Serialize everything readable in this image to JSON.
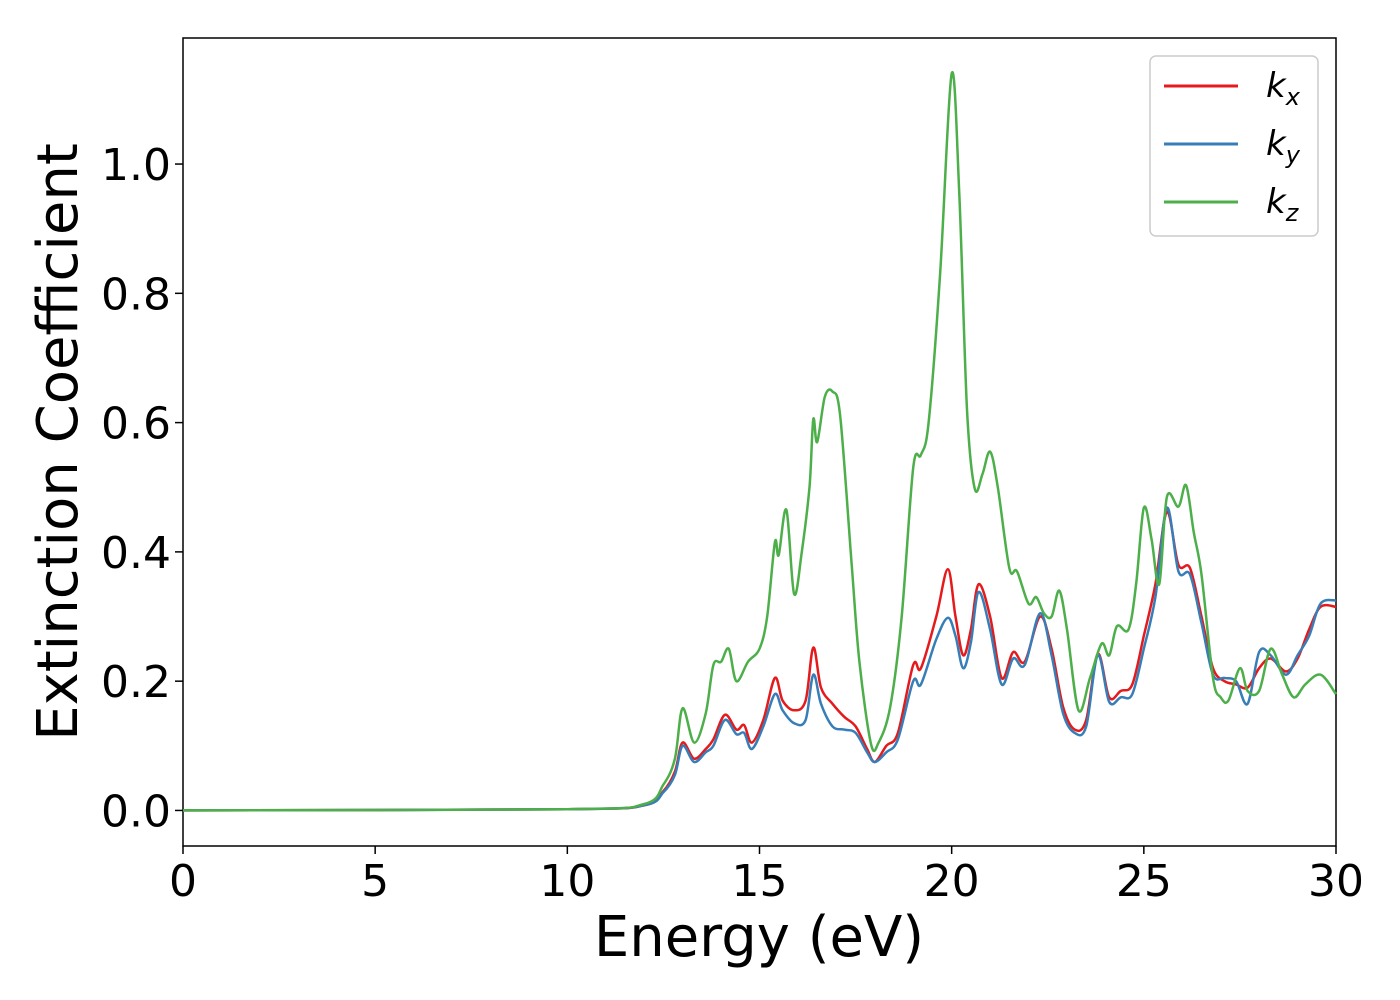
{
  "chart_data": {
    "type": "line",
    "xlabel": "Energy (eV)",
    "ylabel": "Extinction Coefficient",
    "xlim": [
      0,
      30
    ],
    "ylim": [
      -0.055,
      1.195
    ],
    "x_ticks": [
      "0",
      "5",
      "10",
      "15",
      "20",
      "25",
      "30"
    ],
    "y_ticks": [
      "0.0",
      "0.2",
      "0.4",
      "0.6",
      "0.8",
      "1.0"
    ],
    "grid": false,
    "legend_position": "top-right",
    "series": [
      {
        "name": "k",
        "subscript": "x",
        "color": "#e41a1c",
        "points": [
          [
            0,
            0
          ],
          [
            10,
            0.002
          ],
          [
            12,
            0.008
          ],
          [
            12.5,
            0.03
          ],
          [
            12.8,
            0.06
          ],
          [
            13.0,
            0.105
          ],
          [
            13.3,
            0.08
          ],
          [
            13.6,
            0.095
          ],
          [
            13.8,
            0.11
          ],
          [
            14.1,
            0.148
          ],
          [
            14.4,
            0.125
          ],
          [
            14.6,
            0.132
          ],
          [
            14.8,
            0.105
          ],
          [
            15.1,
            0.14
          ],
          [
            15.4,
            0.205
          ],
          [
            15.6,
            0.17
          ],
          [
            15.9,
            0.155
          ],
          [
            16.2,
            0.17
          ],
          [
            16.4,
            0.252
          ],
          [
            16.6,
            0.19
          ],
          [
            16.9,
            0.165
          ],
          [
            17.2,
            0.145
          ],
          [
            17.5,
            0.13
          ],
          [
            17.8,
            0.095
          ],
          [
            18.0,
            0.075
          ],
          [
            18.3,
            0.1
          ],
          [
            18.6,
            0.12
          ],
          [
            19.0,
            0.225
          ],
          [
            19.2,
            0.22
          ],
          [
            19.6,
            0.3
          ],
          [
            19.9,
            0.373
          ],
          [
            20.1,
            0.3
          ],
          [
            20.3,
            0.24
          ],
          [
            20.5,
            0.28
          ],
          [
            20.7,
            0.35
          ],
          [
            21.0,
            0.3
          ],
          [
            21.3,
            0.205
          ],
          [
            21.6,
            0.245
          ],
          [
            21.9,
            0.23
          ],
          [
            22.3,
            0.3
          ],
          [
            22.6,
            0.25
          ],
          [
            22.9,
            0.16
          ],
          [
            23.2,
            0.125
          ],
          [
            23.5,
            0.14
          ],
          [
            23.8,
            0.242
          ],
          [
            24.1,
            0.175
          ],
          [
            24.4,
            0.185
          ],
          [
            24.7,
            0.195
          ],
          [
            25.0,
            0.27
          ],
          [
            25.3,
            0.35
          ],
          [
            25.6,
            0.462
          ],
          [
            25.9,
            0.38
          ],
          [
            26.2,
            0.375
          ],
          [
            26.5,
            0.3
          ],
          [
            26.8,
            0.22
          ],
          [
            27.1,
            0.2
          ],
          [
            27.4,
            0.195
          ],
          [
            27.7,
            0.19
          ],
          [
            28.0,
            0.22
          ],
          [
            28.3,
            0.235
          ],
          [
            28.7,
            0.215
          ],
          [
            29.0,
            0.235
          ],
          [
            29.3,
            0.28
          ],
          [
            29.6,
            0.315
          ],
          [
            30.0,
            0.315
          ]
        ]
      },
      {
        "name": "k",
        "subscript": "y",
        "color": "#377eb8",
        "points": [
          [
            0,
            0
          ],
          [
            10,
            0.002
          ],
          [
            12,
            0.008
          ],
          [
            12.5,
            0.028
          ],
          [
            12.8,
            0.055
          ],
          [
            13.0,
            0.1
          ],
          [
            13.3,
            0.075
          ],
          [
            13.6,
            0.09
          ],
          [
            13.8,
            0.1
          ],
          [
            14.1,
            0.14
          ],
          [
            14.4,
            0.118
          ],
          [
            14.6,
            0.12
          ],
          [
            14.8,
            0.095
          ],
          [
            15.1,
            0.13
          ],
          [
            15.4,
            0.18
          ],
          [
            15.6,
            0.155
          ],
          [
            15.9,
            0.135
          ],
          [
            16.2,
            0.14
          ],
          [
            16.4,
            0.21
          ],
          [
            16.6,
            0.165
          ],
          [
            16.9,
            0.13
          ],
          [
            17.2,
            0.125
          ],
          [
            17.5,
            0.12
          ],
          [
            17.8,
            0.09
          ],
          [
            18.0,
            0.075
          ],
          [
            18.3,
            0.09
          ],
          [
            18.6,
            0.11
          ],
          [
            19.0,
            0.2
          ],
          [
            19.2,
            0.195
          ],
          [
            19.6,
            0.265
          ],
          [
            19.9,
            0.298
          ],
          [
            20.1,
            0.27
          ],
          [
            20.3,
            0.22
          ],
          [
            20.5,
            0.26
          ],
          [
            20.7,
            0.338
          ],
          [
            21.0,
            0.28
          ],
          [
            21.3,
            0.195
          ],
          [
            21.6,
            0.235
          ],
          [
            21.9,
            0.225
          ],
          [
            22.3,
            0.305
          ],
          [
            22.6,
            0.24
          ],
          [
            22.9,
            0.15
          ],
          [
            23.2,
            0.12
          ],
          [
            23.5,
            0.13
          ],
          [
            23.8,
            0.24
          ],
          [
            24.1,
            0.168
          ],
          [
            24.4,
            0.175
          ],
          [
            24.7,
            0.18
          ],
          [
            25.0,
            0.25
          ],
          [
            25.3,
            0.33
          ],
          [
            25.6,
            0.468
          ],
          [
            25.9,
            0.37
          ],
          [
            26.2,
            0.365
          ],
          [
            26.5,
            0.29
          ],
          [
            26.8,
            0.21
          ],
          [
            27.1,
            0.205
          ],
          [
            27.4,
            0.2
          ],
          [
            27.7,
            0.165
          ],
          [
            28.0,
            0.245
          ],
          [
            28.3,
            0.24
          ],
          [
            28.7,
            0.21
          ],
          [
            29.0,
            0.24
          ],
          [
            29.3,
            0.27
          ],
          [
            29.6,
            0.32
          ],
          [
            30.0,
            0.325
          ]
        ]
      },
      {
        "name": "k",
        "subscript": "z",
        "color": "#4daf4a",
        "points": [
          [
            0,
            0
          ],
          [
            10,
            0.002
          ],
          [
            12,
            0.01
          ],
          [
            12.5,
            0.04
          ],
          [
            12.8,
            0.08
          ],
          [
            13.0,
            0.158
          ],
          [
            13.3,
            0.105
          ],
          [
            13.6,
            0.15
          ],
          [
            13.8,
            0.225
          ],
          [
            14.0,
            0.23
          ],
          [
            14.2,
            0.25
          ],
          [
            14.4,
            0.2
          ],
          [
            14.7,
            0.23
          ],
          [
            15.0,
            0.25
          ],
          [
            15.2,
            0.3
          ],
          [
            15.4,
            0.415
          ],
          [
            15.5,
            0.395
          ],
          [
            15.7,
            0.465
          ],
          [
            15.9,
            0.335
          ],
          [
            16.1,
            0.4
          ],
          [
            16.3,
            0.5
          ],
          [
            16.4,
            0.605
          ],
          [
            16.5,
            0.57
          ],
          [
            16.7,
            0.64
          ],
          [
            16.9,
            0.648
          ],
          [
            17.1,
            0.61
          ],
          [
            17.4,
            0.38
          ],
          [
            17.6,
            0.23
          ],
          [
            17.9,
            0.103
          ],
          [
            18.1,
            0.105
          ],
          [
            18.4,
            0.16
          ],
          [
            18.7,
            0.3
          ],
          [
            19.0,
            0.53
          ],
          [
            19.2,
            0.55
          ],
          [
            19.4,
            0.6
          ],
          [
            19.7,
            0.83
          ],
          [
            20.0,
            1.14
          ],
          [
            20.2,
            0.95
          ],
          [
            20.4,
            0.62
          ],
          [
            20.6,
            0.498
          ],
          [
            20.8,
            0.52
          ],
          [
            21.0,
            0.555
          ],
          [
            21.2,
            0.5
          ],
          [
            21.5,
            0.375
          ],
          [
            21.7,
            0.37
          ],
          [
            22.0,
            0.32
          ],
          [
            22.2,
            0.33
          ],
          [
            22.4,
            0.305
          ],
          [
            22.6,
            0.3
          ],
          [
            22.8,
            0.34
          ],
          [
            23.0,
            0.28
          ],
          [
            23.3,
            0.155
          ],
          [
            23.6,
            0.205
          ],
          [
            23.9,
            0.258
          ],
          [
            24.1,
            0.24
          ],
          [
            24.3,
            0.285
          ],
          [
            24.6,
            0.28
          ],
          [
            24.8,
            0.35
          ],
          [
            25.0,
            0.468
          ],
          [
            25.2,
            0.42
          ],
          [
            25.4,
            0.35
          ],
          [
            25.6,
            0.485
          ],
          [
            25.9,
            0.47
          ],
          [
            26.1,
            0.503
          ],
          [
            26.3,
            0.43
          ],
          [
            26.5,
            0.365
          ],
          [
            26.8,
            0.205
          ],
          [
            27.0,
            0.175
          ],
          [
            27.2,
            0.17
          ],
          [
            27.5,
            0.22
          ],
          [
            27.7,
            0.185
          ],
          [
            28.0,
            0.185
          ],
          [
            28.3,
            0.25
          ],
          [
            28.6,
            0.21
          ],
          [
            28.9,
            0.175
          ],
          [
            29.2,
            0.195
          ],
          [
            29.6,
            0.21
          ],
          [
            30.0,
            0.18
          ]
        ]
      }
    ]
  }
}
